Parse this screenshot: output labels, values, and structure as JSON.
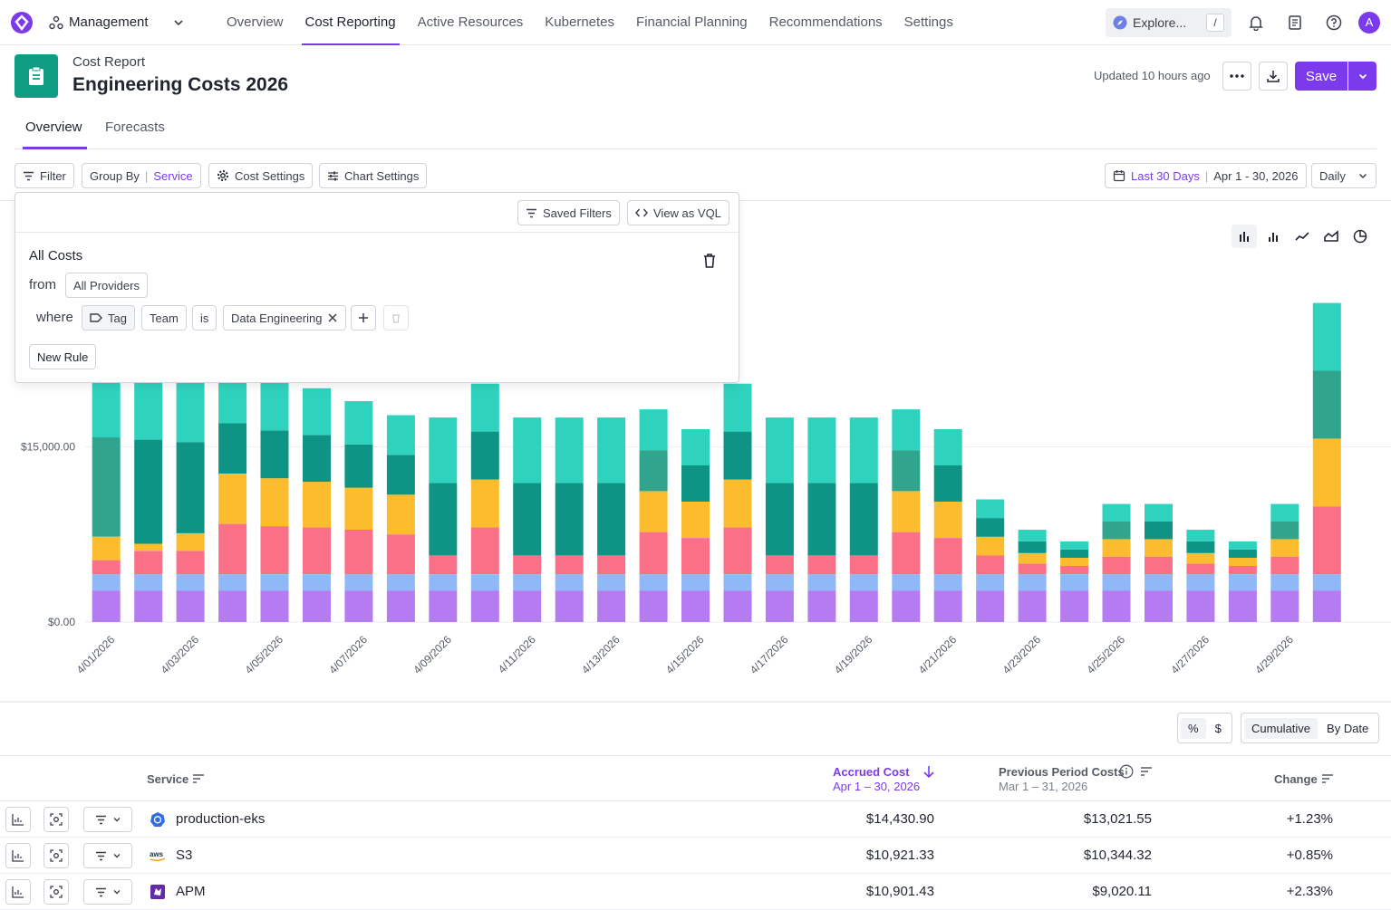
{
  "nav": {
    "workspace": "Management",
    "links": [
      "Overview",
      "Cost Reporting",
      "Active Resources",
      "Kubernetes",
      "Financial Planning",
      "Recommendations",
      "Settings"
    ],
    "active_index": 1,
    "explore_label": "Explore...",
    "explore_shortcut": "/",
    "avatar_initial": "A"
  },
  "header": {
    "subtitle": "Cost Report",
    "title": "Engineering Costs 2026",
    "updated": "Updated 10 hours ago",
    "save_label": "Save"
  },
  "tabs": [
    "Overview",
    "Forecasts"
  ],
  "toolbar": {
    "filter": "Filter",
    "group_by_label": "Group By",
    "group_by_value": "Service",
    "cost_settings": "Cost Settings",
    "chart_settings": "Chart Settings",
    "date_range": "Last 30 Days",
    "date_span": "Apr 1 - 30, 2026",
    "granularity": "Daily"
  },
  "filter_popup": {
    "saved_filters": "Saved Filters",
    "view_vql": "View as VQL",
    "heading": "All Costs",
    "from_label": "from",
    "provider": "All Providers",
    "where_label": "where",
    "field_type": "Tag",
    "field": "Team",
    "operator": "is",
    "value": "Data Engineering",
    "new_rule": "New Rule"
  },
  "colors": {
    "accent": "#7c3aed",
    "report_icon": "#0f9d84"
  },
  "chart_data": {
    "type": "bar",
    "stacked": true,
    "categories": [
      "4/01/2026",
      "4/02/2026",
      "4/03/2026",
      "4/04/2026",
      "4/05/2026",
      "4/06/2026",
      "4/07/2026",
      "4/08/2026",
      "4/09/2026",
      "4/10/2026",
      "4/11/2026",
      "4/12/2026",
      "4/13/2026",
      "4/14/2026",
      "4/15/2026",
      "4/16/2026",
      "4/17/2026",
      "4/18/2026",
      "4/19/2026",
      "4/20/2026",
      "4/21/2026",
      "4/22/2026",
      "4/23/2026",
      "4/24/2026",
      "4/25/2026",
      "4/26/2026",
      "4/27/2026",
      "4/28/2026",
      "4/29/2026",
      "4/30/2026"
    ],
    "tick_labels": [
      "4/01/2026",
      "4/03/2026",
      "4/05/2026",
      "4/07/2026",
      "4/09/2026",
      "4/11/2026",
      "4/13/2026",
      "4/15/2026",
      "4/17/2026",
      "4/19/2026",
      "4/21/2026",
      "4/23/2026",
      "4/25/2026",
      "4/27/2026",
      "4/29/2026"
    ],
    "y_tick_labels": [
      "$0.00",
      "$15,000.00"
    ],
    "y_ticks": [
      0,
      15000
    ],
    "ylim": [
      0,
      27500
    ],
    "series": [
      {
        "color": "#b57cf2",
        "values": [
          2700,
          2700,
          2700,
          2700,
          2700,
          2700,
          2700,
          2700,
          2700,
          2700,
          2700,
          2700,
          2700,
          2700,
          2700,
          2700,
          2700,
          2700,
          2700,
          2700,
          2700,
          2700,
          2700,
          2700,
          2700,
          2700,
          2700,
          2700,
          2700,
          2700
        ]
      },
      {
        "color": "#8fb8f7",
        "values": [
          1400,
          1400,
          1400,
          1400,
          1400,
          1400,
          1400,
          1400,
          1400,
          1400,
          1400,
          1400,
          1400,
          1400,
          1400,
          1400,
          1400,
          1400,
          1400,
          1400,
          1400,
          1400,
          1400,
          1400,
          1400,
          1400,
          1400,
          1400,
          1400,
          1400
        ]
      },
      {
        "color": "#fa7087",
        "values": [
          1200,
          2000,
          2000,
          4300,
          4100,
          4000,
          3800,
          3400,
          1600,
          4000,
          1600,
          1600,
          1600,
          3600,
          3100,
          4000,
          1600,
          1600,
          1600,
          3600,
          3100,
          1600,
          900,
          700,
          1500,
          1500,
          900,
          700,
          1500,
          5800
        ]
      },
      {
        "color": "#fbbd2d",
        "values": [
          2000,
          600,
          1500,
          4300,
          4100,
          3900,
          3600,
          3400,
          0,
          4100,
          0,
          0,
          0,
          3500,
          3100,
          4100,
          0,
          0,
          0,
          3500,
          3100,
          1600,
          900,
          700,
          1500,
          1500,
          900,
          700,
          1500,
          5800
        ]
      },
      {
        "color": "#0e9484",
        "values": [
          0,
          8900,
          7800,
          4300,
          4100,
          4000,
          3700,
          3400,
          6200,
          4100,
          6200,
          6200,
          6200,
          0,
          3100,
          4100,
          6200,
          6200,
          6200,
          0,
          3100,
          1600,
          1000,
          700,
          0,
          1500,
          1000,
          700,
          0,
          0
        ]
      },
      {
        "color": "#30a48c",
        "values": [
          8500,
          0,
          0,
          0,
          0,
          0,
          0,
          0,
          0,
          0,
          0,
          0,
          0,
          3500,
          0,
          0,
          0,
          0,
          0,
          3500,
          0,
          0,
          0,
          0,
          1500,
          0,
          0,
          0,
          1500,
          5800
        ]
      },
      {
        "color": "#2fd3bd",
        "values": [
          7800,
          7400,
          5600,
          4300,
          4100,
          4000,
          3700,
          3400,
          5600,
          4100,
          5600,
          5600,
          5600,
          3500,
          3100,
          4100,
          5600,
          5600,
          5600,
          3500,
          3100,
          1600,
          1000,
          700,
          1500,
          1500,
          1000,
          700,
          1500,
          5800
        ]
      }
    ]
  },
  "view_toggle": {
    "pct": "%",
    "usd": "$",
    "cumulative": "Cumulative",
    "by_date": "By Date"
  },
  "table": {
    "col_service": "Service",
    "col_accrued": "Accrued Cost",
    "col_accrued_sub": "Apr 1 – 30, 2026",
    "col_prev": "Previous Period Costs",
    "col_prev_sub": "Mar 1 – 31, 2026",
    "col_change": "Change",
    "rows": [
      {
        "service": "production-eks",
        "icon": "kubernetes-icon",
        "accrued": "$14,430.90",
        "previous": "$13,021.55",
        "change": "+1.23%"
      },
      {
        "service": "S3",
        "icon": "aws-icon",
        "accrued": "$10,921.33",
        "previous": "$10,344.32",
        "change": "+0.85%"
      },
      {
        "service": "APM",
        "icon": "datadog-icon",
        "accrued": "$10,901.43",
        "previous": "$9,020.11",
        "change": "+2.33%"
      }
    ]
  }
}
